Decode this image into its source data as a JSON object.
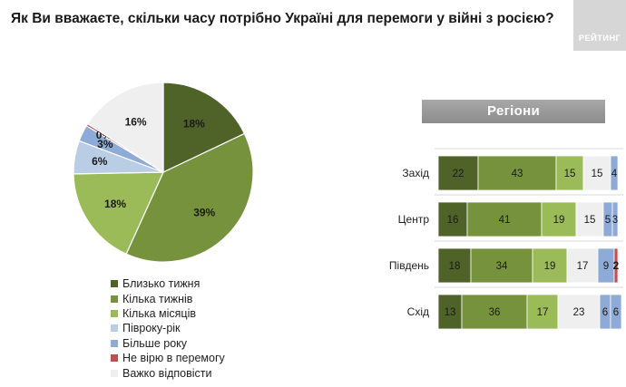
{
  "title": "Як Ви вважаєте, скільки часу потрібно Україні для перемоги у війні з росією?",
  "logo": "РЕЙТИНГ",
  "region_header": "Регіони",
  "legend": [
    {
      "label": "Близько тижня",
      "color": "#4f6228"
    },
    {
      "label": "Кілька тижнів",
      "color": "#76923c"
    },
    {
      "label": "Кілька місяців",
      "color": "#9bbb59"
    },
    {
      "label": "Півроку-рік",
      "color": "#b9cde5"
    },
    {
      "label": "Більше року",
      "color": "#8eaad6"
    },
    {
      "label": "Не вірю в перемогу",
      "color": "#c0504d"
    },
    {
      "label": "Важко відповісти",
      "color": "#efefef"
    }
  ],
  "chart_data": [
    {
      "type": "pie",
      "categories": [
        "Близько тижня",
        "Кілька тижнів",
        "Кілька місяців",
        "Півроку-рік",
        "Більше року",
        "Не вірю в перемогу",
        "Важко відповісти"
      ],
      "values": [
        18,
        39,
        18,
        6,
        3,
        0.4,
        16
      ],
      "labels": [
        "18%",
        "39%",
        "18%",
        "6%",
        "3%",
        "0%",
        "16%"
      ],
      "colors": [
        "#4f6228",
        "#76923c",
        "#9bbb59",
        "#b9cde5",
        "#8eaad6",
        "#c0504d",
        "#efefef"
      ]
    },
    {
      "type": "bar",
      "orientation": "horizontal",
      "stacked": true,
      "title": "Регіони",
      "categories": [
        "Захід",
        "Центр",
        "Південь",
        "Схід"
      ],
      "series": [
        {
          "name": "Близько тижня",
          "values": [
            22,
            16,
            18,
            13
          ],
          "labels": [
            "22",
            "16",
            "18",
            "13"
          ]
        },
        {
          "name": "Кілька тижнів",
          "values": [
            43,
            41,
            34,
            36
          ],
          "labels": [
            "43",
            "41",
            "34",
            "36"
          ]
        },
        {
          "name": "Кілька місяців",
          "values": [
            15,
            19,
            19,
            17
          ],
          "labels": [
            "15",
            "19",
            "19",
            "17"
          ]
        },
        {
          "name": "Півроку-рік",
          "values": [
            0,
            0,
            0,
            0
          ],
          "labels": [
            "",
            "",
            "",
            ""
          ]
        },
        {
          "name": "Важко відповісти",
          "values": [
            15,
            15,
            17,
            23
          ],
          "labels": [
            "15",
            "15",
            "17",
            "23"
          ]
        },
        {
          "name": "Більше року",
          "values": [
            4,
            5,
            9,
            6
          ],
          "labels": [
            "4",
            "5",
            "9",
            "6"
          ]
        },
        {
          "name": "Більше року (2)",
          "values": [
            0,
            3,
            0,
            6
          ],
          "labels": [
            "",
            "3",
            "",
            "6"
          ]
        },
        {
          "name": "Не вірю в перемогу",
          "values": [
            0,
            0,
            2,
            0
          ],
          "labels": [
            "",
            "",
            "2",
            ""
          ]
        }
      ]
    }
  ]
}
